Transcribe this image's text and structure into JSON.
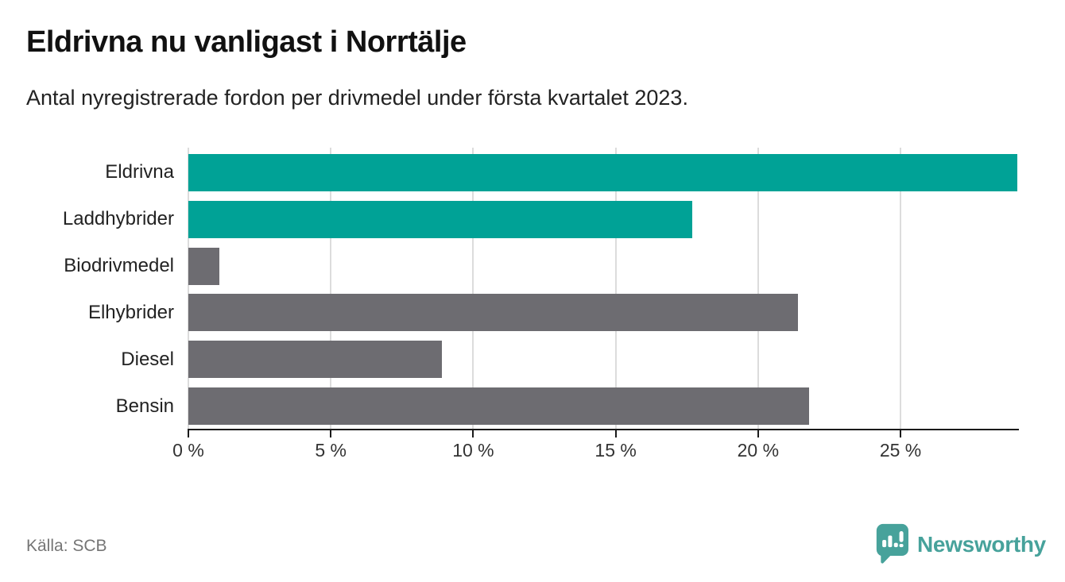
{
  "header": {
    "title": "Eldrivna nu vanligast i Norrtälje",
    "subtitle": "Antal nyregistrerade fordon per drivmedel under första kvartalet 2023."
  },
  "chart_data": {
    "type": "bar",
    "orientation": "horizontal",
    "title": "Eldrivna nu vanligast i Norrtälje",
    "subtitle": "Antal nyregistrerade fordon per drivmedel under första kvartalet 2023.",
    "categories": [
      "Eldrivna",
      "Laddhybrider",
      "Biodrivmedel",
      "Elhybrider",
      "Diesel",
      "Bensin"
    ],
    "values": [
      29.1,
      17.7,
      1.1,
      21.4,
      8.9,
      21.8
    ],
    "unit": "%",
    "xlim": [
      0,
      29.1
    ],
    "x_ticks": [
      0,
      5,
      10,
      15,
      20,
      25
    ],
    "x_tick_labels": [
      "0 %",
      "5 %",
      "10 %",
      "15 %",
      "20 %",
      "25 %"
    ],
    "grid": true,
    "legend": false,
    "xlabel": "",
    "ylabel": "",
    "bar_colors": [
      "#00A296",
      "#00A296",
      "#6D6C71",
      "#6D6C71",
      "#6D6C71",
      "#6D6C71"
    ]
  },
  "footer": {
    "source": "Källa: SCB",
    "brand": "Newsworthy"
  },
  "icons": {
    "brand_logo": "newsworthy-speech-bubble-barchart-icon"
  },
  "colors": {
    "accent_teal": "#00A296",
    "bar_gray": "#6D6C71",
    "brand_teal": "#47A29B",
    "grid": "#DCDCDC",
    "axis": "#1A1A1A",
    "text_dark": "#1F1F1F",
    "text_muted": "#757575"
  }
}
